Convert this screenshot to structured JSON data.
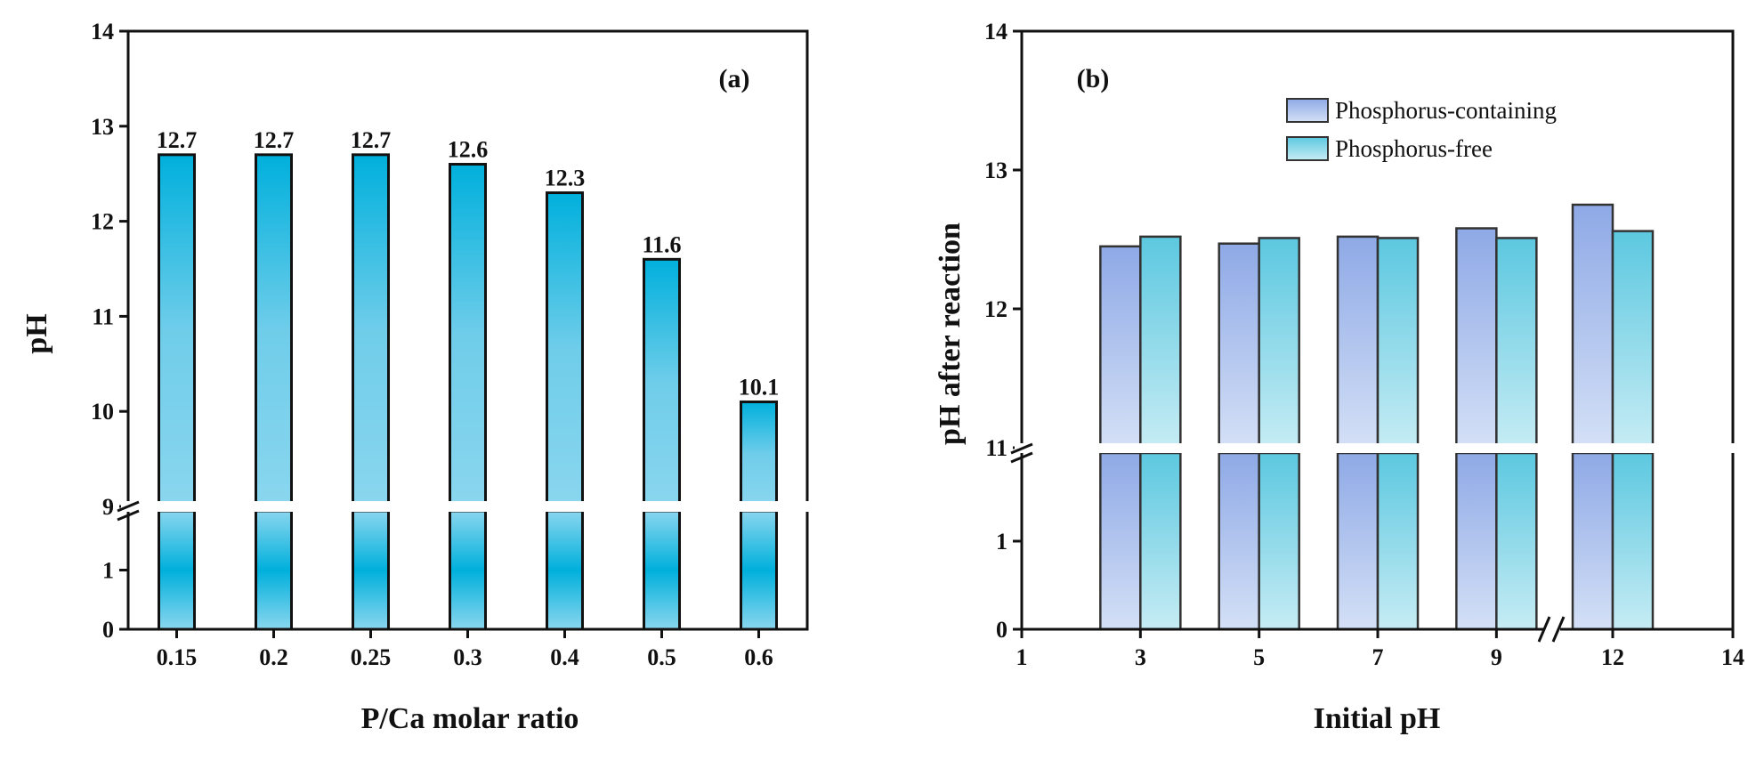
{
  "chart_data": [
    {
      "id": "a",
      "type": "bar",
      "panel_label": "(a)",
      "xlabel": "P/Ca molar ratio",
      "ylabel": "pH",
      "categories": [
        "0.15",
        "0.2",
        "0.25",
        "0.3",
        "0.4",
        "0.5",
        "0.6"
      ],
      "values": [
        12.7,
        12.7,
        12.7,
        12.6,
        12.3,
        11.6,
        10.1
      ],
      "value_labels": [
        "12.7",
        "12.7",
        "12.7",
        "12.6",
        "12.3",
        "11.6",
        "10.1"
      ],
      "y_break": {
        "lower_range": [
          0,
          2
        ],
        "upper_range": [
          9,
          14
        ]
      },
      "yticks_lower": [
        "0",
        "1"
      ],
      "yticks_upper": [
        "9",
        "10",
        "11",
        "12",
        "13",
        "14"
      ],
      "bar_color": "#00b0dc",
      "bar_color_light": "#8ad6ee"
    },
    {
      "id": "b",
      "type": "bar",
      "panel_label": "(b)",
      "xlabel": "Initial pH",
      "ylabel": "pH after reaction",
      "x_break": true,
      "xticks": [
        "1",
        "3",
        "5",
        "7",
        "9",
        "12",
        "14"
      ],
      "categories": [
        "3",
        "5",
        "7",
        "9",
        "12"
      ],
      "series": [
        {
          "name": "Phosphorus-containing",
          "values": [
            12.45,
            12.47,
            12.52,
            12.58,
            12.75
          ],
          "color": "#8ea9e6",
          "color_light": "#d4e0f6"
        },
        {
          "name": "Phosphorus-free",
          "values": [
            12.52,
            12.51,
            12.51,
            12.51,
            12.56
          ],
          "color": "#5cc8e0",
          "color_light": "#c6ecf4"
        }
      ],
      "y_break": {
        "lower_range": [
          0,
          2
        ],
        "upper_range": [
          11,
          14
        ]
      },
      "yticks_lower": [
        "0",
        "1"
      ],
      "yticks_upper": [
        "11",
        "12",
        "13",
        "14"
      ]
    }
  ]
}
